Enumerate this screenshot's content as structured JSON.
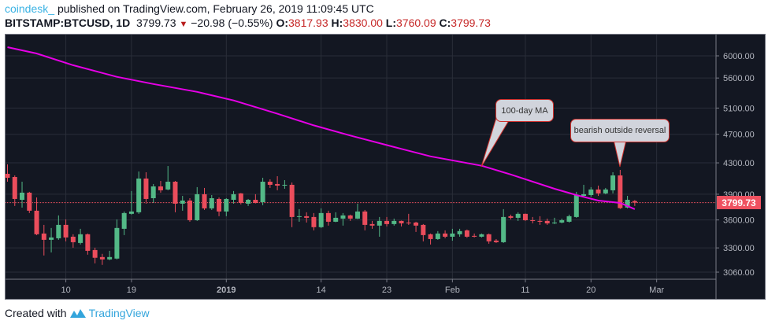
{
  "header": {
    "brand": "coindesk_",
    "published": "published on TradingView.com, February 26, 2019 11:09:45 UTC",
    "symbol": "BITSTAMP:BTCUSD, 1D",
    "last": "3799.73",
    "change": "−20.98 (−0.55%)",
    "o_label": "O:",
    "o_value": "3817.93",
    "h_label": "H:",
    "h_value": "3830.00",
    "l_label": "L:",
    "l_value": "3760.09",
    "c_label": "C:",
    "c_value": "3799.73",
    "down_icon": "triangle-down"
  },
  "footer": {
    "created_with": "Created with",
    "logo_text": "TradingView"
  },
  "colors": {
    "background": "#131722",
    "up": "#53b987",
    "down": "#eb4d5c",
    "ma": "#e600e6",
    "grid": "#2a2e39",
    "price_line": "#ef5160"
  },
  "chart_data": {
    "type": "candlestick",
    "y_scale": "log",
    "ylim": [
      3020,
      6200
    ],
    "grid": true,
    "current_price": "3799.73",
    "y_ticks": [
      "6000.00",
      "5600.00",
      "5100.00",
      "4700.00",
      "4300.00",
      "3900.00",
      "3600.00",
      "3300.00",
      "3060.00"
    ],
    "x_ticks": [
      {
        "date": "2018-12-10",
        "label": "10"
      },
      {
        "date": "2018-12-19",
        "label": "19"
      },
      {
        "date": "2019-01-01",
        "label": "2019",
        "bold": true
      },
      {
        "date": "2019-01-14",
        "label": "14"
      },
      {
        "date": "2019-01-23",
        "label": "23"
      },
      {
        "date": "2019-02-01",
        "label": "Feb"
      },
      {
        "date": "2019-02-11",
        "label": "11"
      },
      {
        "date": "2019-02-20",
        "label": "20"
      },
      {
        "date": "2019-03-01",
        "label": "Mar"
      }
    ],
    "candle_fields": [
      "date",
      "open",
      "high",
      "low",
      "close"
    ],
    "candles": [
      [
        "2018-12-02",
        4156,
        4279,
        4055,
        4105
      ],
      [
        "2018-12-03",
        4115,
        4135,
        3760,
        3843
      ],
      [
        "2018-12-04",
        3833,
        4055,
        3741,
        3919
      ],
      [
        "2018-12-05",
        3919,
        3929,
        3678,
        3705
      ],
      [
        "2018-12-06",
        3705,
        3861,
        3434,
        3443
      ],
      [
        "2018-12-07",
        3451,
        3545,
        3223,
        3384
      ],
      [
        "2018-12-08",
        3384,
        3511,
        3254,
        3409
      ],
      [
        "2018-12-09",
        3400,
        3651,
        3384,
        3545
      ],
      [
        "2018-12-10",
        3545,
        3606,
        3368,
        3409
      ],
      [
        "2018-12-11",
        3417,
        3443,
        3302,
        3359
      ],
      [
        "2018-12-12",
        3351,
        3502,
        3335,
        3443
      ],
      [
        "2018-12-13",
        3443,
        3451,
        3231,
        3270
      ],
      [
        "2018-12-14",
        3278,
        3302,
        3145,
        3200
      ],
      [
        "2018-12-15",
        3207,
        3239,
        3130,
        3184
      ],
      [
        "2018-12-16",
        3184,
        3270,
        3176,
        3207
      ],
      [
        "2018-12-17",
        3192,
        3606,
        3184,
        3511
      ],
      [
        "2018-12-18",
        3502,
        3696,
        3434,
        3678
      ],
      [
        "2018-12-19",
        3669,
        3939,
        3660,
        3696
      ],
      [
        "2018-12-20",
        3687,
        4186,
        3669,
        4095
      ],
      [
        "2018-12-21",
        4095,
        4176,
        3787,
        3843
      ],
      [
        "2018-12-22",
        3852,
        4026,
        3796,
        3996
      ],
      [
        "2018-12-23",
        3996,
        4065,
        3919,
        3948
      ],
      [
        "2018-12-24",
        3958,
        4258,
        3948,
        4055
      ],
      [
        "2018-12-25",
        4055,
        4065,
        3687,
        3787
      ],
      [
        "2018-12-26",
        3787,
        3880,
        3705,
        3824
      ],
      [
        "2018-12-27",
        3824,
        3852,
        3580,
        3597
      ],
      [
        "2018-12-28",
        3597,
        3987,
        3589,
        3900
      ],
      [
        "2018-12-29",
        3900,
        3977,
        3714,
        3732
      ],
      [
        "2018-12-30",
        3732,
        3890,
        3714,
        3852
      ],
      [
        "2018-12-31",
        3843,
        3861,
        3642,
        3696
      ],
      [
        "2019-01-01",
        3696,
        3852,
        3642,
        3843
      ],
      [
        "2019-01-02",
        3833,
        3939,
        3787,
        3900
      ],
      [
        "2019-01-03",
        3910,
        3915,
        3778,
        3796
      ],
      [
        "2019-01-04",
        3787,
        3843,
        3760,
        3833
      ],
      [
        "2019-01-05",
        3833,
        3900,
        3790,
        3796
      ],
      [
        "2019-01-06",
        3805,
        4105,
        3769,
        4055
      ],
      [
        "2019-01-07",
        4055,
        4085,
        3977,
        4016
      ],
      [
        "2019-01-08",
        4026,
        4125,
        3948,
        4006
      ],
      [
        "2019-01-09",
        4006,
        4075,
        3967,
        4016
      ],
      [
        "2019-01-10",
        4016,
        4045,
        3520,
        3633
      ],
      [
        "2019-01-11",
        3633,
        3723,
        3580,
        3642
      ],
      [
        "2019-01-12",
        3642,
        3687,
        3571,
        3624
      ],
      [
        "2019-01-13",
        3633,
        3678,
        3485,
        3520
      ],
      [
        "2019-01-14",
        3520,
        3732,
        3511,
        3678
      ],
      [
        "2019-01-15",
        3678,
        3705,
        3537,
        3580
      ],
      [
        "2019-01-16",
        3580,
        3687,
        3575,
        3624
      ],
      [
        "2019-01-17",
        3615,
        3678,
        3537,
        3651
      ],
      [
        "2019-01-18",
        3651,
        3660,
        3589,
        3615
      ],
      [
        "2019-01-19",
        3615,
        3787,
        3610,
        3696
      ],
      [
        "2019-01-20",
        3696,
        3714,
        3485,
        3545
      ],
      [
        "2019-01-21",
        3554,
        3589,
        3502,
        3537
      ],
      [
        "2019-01-22",
        3537,
        3633,
        3417,
        3589
      ],
      [
        "2019-01-23",
        3589,
        3633,
        3528,
        3554
      ],
      [
        "2019-01-24",
        3554,
        3615,
        3537,
        3589
      ],
      [
        "2019-01-25",
        3589,
        3593,
        3528,
        3562
      ],
      [
        "2019-01-26",
        3571,
        3669,
        3545,
        3562
      ],
      [
        "2019-01-27",
        3571,
        3580,
        3468,
        3537
      ],
      [
        "2019-01-28",
        3545,
        3554,
        3368,
        3434
      ],
      [
        "2019-01-29",
        3443,
        3451,
        3335,
        3392
      ],
      [
        "2019-01-30",
        3392,
        3477,
        3384,
        3451
      ],
      [
        "2019-01-31",
        3451,
        3485,
        3400,
        3417
      ],
      [
        "2019-02-01",
        3417,
        3502,
        3375,
        3451
      ],
      [
        "2019-02-02",
        3443,
        3502,
        3417,
        3477
      ],
      [
        "2019-02-03",
        3485,
        3494,
        3405,
        3417
      ],
      [
        "2019-02-04",
        3426,
        3451,
        3409,
        3417
      ],
      [
        "2019-02-05",
        3417,
        3451,
        3409,
        3443
      ],
      [
        "2019-02-06",
        3443,
        3451,
        3343,
        3368
      ],
      [
        "2019-02-07",
        3376,
        3392,
        3351,
        3359
      ],
      [
        "2019-02-08",
        3359,
        3723,
        3351,
        3633
      ],
      [
        "2019-02-09",
        3642,
        3660,
        3606,
        3624
      ],
      [
        "2019-02-10",
        3624,
        3687,
        3589,
        3669
      ],
      [
        "2019-02-11",
        3669,
        3672,
        3589,
        3597
      ],
      [
        "2019-02-12",
        3597,
        3633,
        3562,
        3589
      ],
      [
        "2019-02-13",
        3589,
        3642,
        3545,
        3580
      ],
      [
        "2019-02-14",
        3589,
        3615,
        3545,
        3562
      ],
      [
        "2019-02-15",
        3562,
        3624,
        3554,
        3571
      ],
      [
        "2019-02-16",
        3571,
        3615,
        3562,
        3597
      ],
      [
        "2019-02-17",
        3580,
        3660,
        3571,
        3642
      ],
      [
        "2019-02-18",
        3633,
        3929,
        3624,
        3890
      ],
      [
        "2019-02-19",
        3880,
        4016,
        3875,
        3900
      ],
      [
        "2019-02-20",
        3890,
        3987,
        3871,
        3958
      ],
      [
        "2019-02-21",
        3958,
        4006,
        3880,
        3910
      ],
      [
        "2019-02-22",
        3910,
        3977,
        3900,
        3958
      ],
      [
        "2019-02-23",
        3948,
        4176,
        3910,
        4135
      ],
      [
        "2019-02-24",
        4135,
        4207,
        3725,
        3735
      ],
      [
        "2019-02-25",
        3741,
        3880,
        3732,
        3833
      ],
      [
        "2019-02-26",
        3817.93,
        3830.0,
        3760.09,
        3799.73
      ]
    ],
    "ma_series": [
      [
        "2018-12-02",
        6164
      ],
      [
        "2018-12-06",
        6044
      ],
      [
        "2018-12-11",
        5827
      ],
      [
        "2018-12-17",
        5620
      ],
      [
        "2018-12-22",
        5496
      ],
      [
        "2018-12-28",
        5363
      ],
      [
        "2019-01-02",
        5222
      ],
      [
        "2019-01-08",
        5011
      ],
      [
        "2019-01-13",
        4832
      ],
      [
        "2019-01-18",
        4682
      ],
      [
        "2019-01-24",
        4517
      ],
      [
        "2019-01-29",
        4388
      ],
      [
        "2019-02-05",
        4262
      ],
      [
        "2019-02-09",
        4148
      ],
      [
        "2019-02-15",
        3967
      ],
      [
        "2019-02-18",
        3890
      ],
      [
        "2019-02-21",
        3824
      ],
      [
        "2019-02-24",
        3796
      ],
      [
        "2019-02-26",
        3723
      ]
    ],
    "annotations": [
      {
        "text": "100-day MA",
        "points_to": "ma_series"
      },
      {
        "text": "bearish outside reversal",
        "points_to": "2019-02-24"
      }
    ]
  }
}
